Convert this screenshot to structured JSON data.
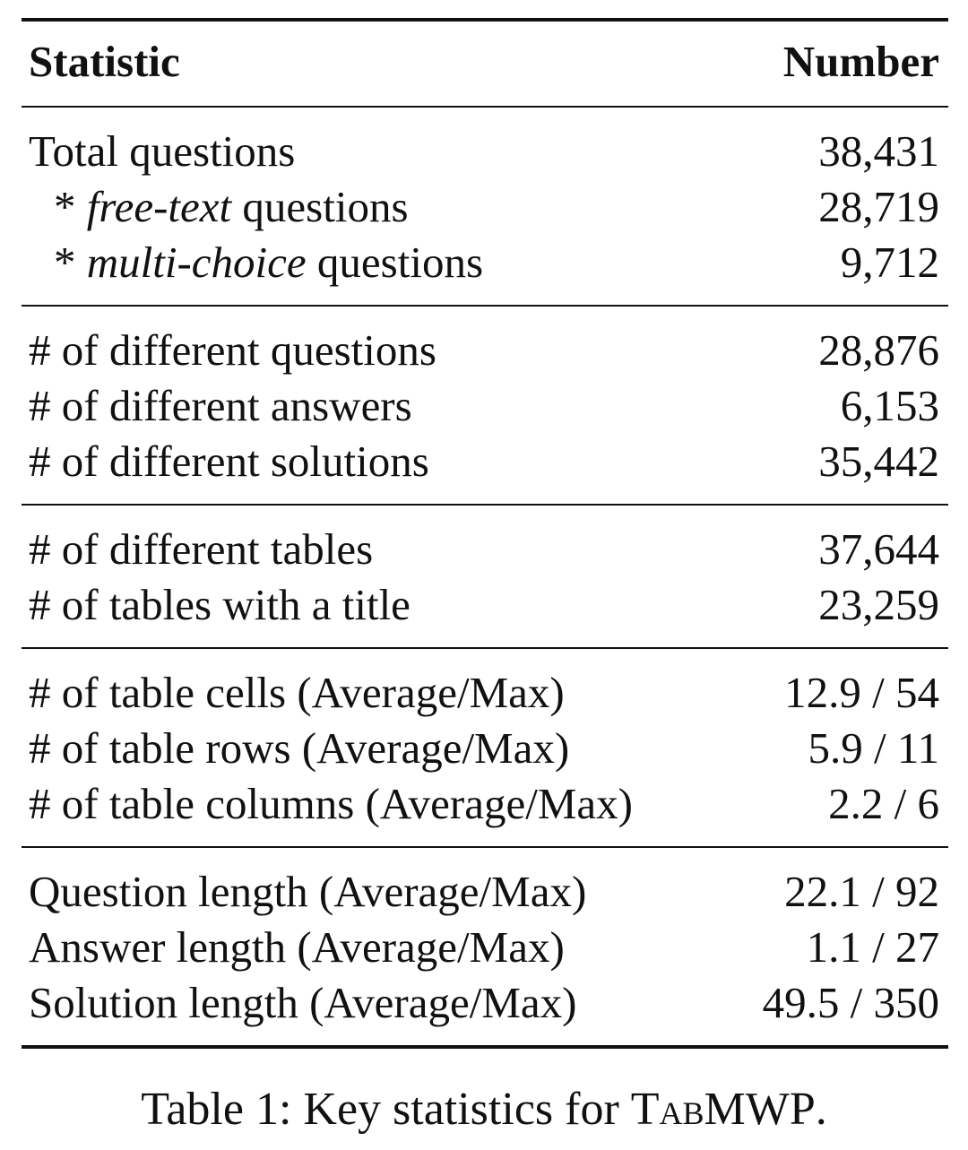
{
  "table": {
    "header": {
      "statistic": "Statistic",
      "number": "Number"
    },
    "groups": [
      {
        "rows": [
          {
            "label": "Total questions",
            "value": "38,431"
          },
          {
            "prefix": "* ",
            "emph": "free-text",
            "suffix": " questions",
            "value": "28,719"
          },
          {
            "prefix": "* ",
            "emph": "multi-choice",
            "suffix": " questions",
            "value": "9,712"
          }
        ]
      },
      {
        "rows": [
          {
            "label": "# of different questions",
            "value": "28,876"
          },
          {
            "label": "# of different answers",
            "value": "6,153"
          },
          {
            "label": "# of different solutions",
            "value": "35,442"
          }
        ]
      },
      {
        "rows": [
          {
            "label": "# of different tables",
            "value": "37,644"
          },
          {
            "label": "# of tables with a title",
            "value": "23,259"
          }
        ]
      },
      {
        "rows": [
          {
            "label": "# of table cells (Average/Max)",
            "value": "12.9 / 54"
          },
          {
            "label": "# of table rows (Average/Max)",
            "value": "5.9 / 11"
          },
          {
            "label": "# of table columns (Average/Max)",
            "value": "2.2 / 6"
          }
        ]
      },
      {
        "rows": [
          {
            "label": "Question length (Average/Max)",
            "value": "22.1 / 92"
          },
          {
            "label": "Answer length (Average/Max)",
            "value": "1.1 / 27"
          },
          {
            "label": "Solution length (Average/Max)",
            "value": "49.5 / 350"
          }
        ]
      }
    ]
  },
  "caption": {
    "prefix": "Table 1: Key statistics for ",
    "name": "TabMWP",
    "suffix": "."
  }
}
